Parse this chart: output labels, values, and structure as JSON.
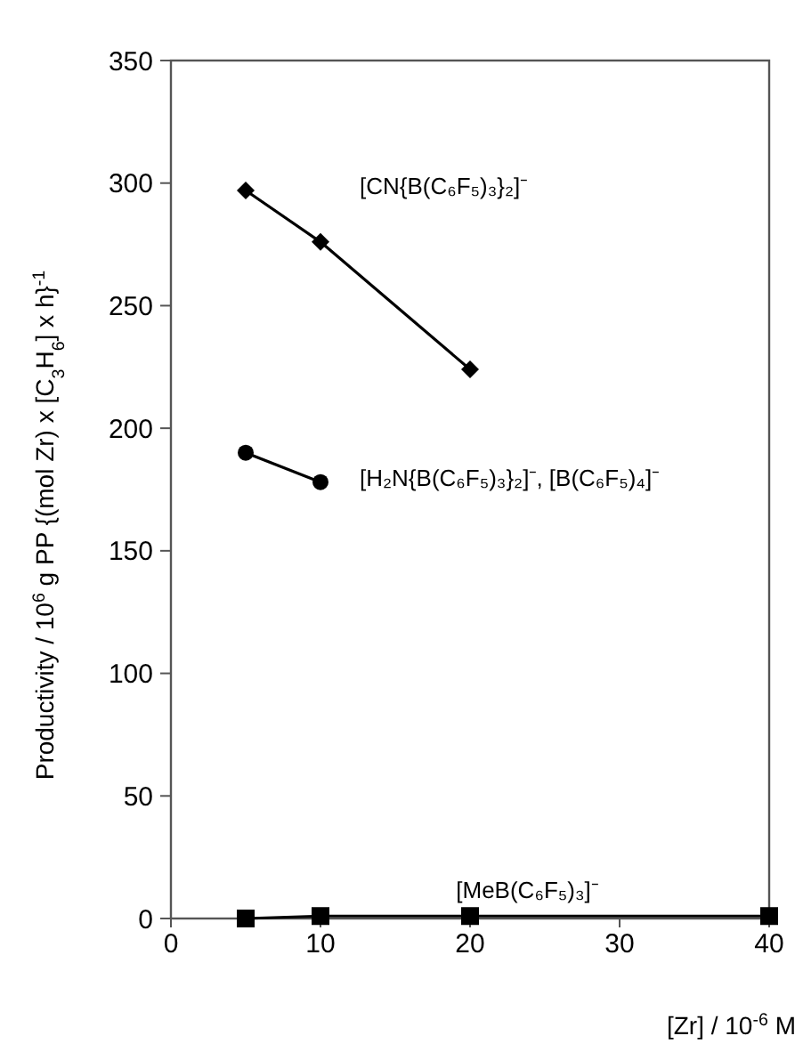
{
  "chart_data": {
    "type": "line",
    "xlabel": "[Zr] / 10$^{-6}$ M",
    "ylabel": "Productivity / 10$^{6}$ g PP {(mol Zr) x [C$_{3}$H$_{6}$] x h}$^{-1}$",
    "xlim": [
      0,
      40
    ],
    "xticks": [
      0,
      10,
      20,
      30,
      40
    ],
    "ylim": [
      0,
      350
    ],
    "yticks": [
      0,
      50,
      100,
      150,
      200,
      250,
      300,
      350
    ],
    "grid": false,
    "series": [
      {
        "name": "[CN{B(C₆F₅)₃}₂]⁻",
        "color": "#000000",
        "marker": "diamond",
        "x": [
          5,
          10,
          20
        ],
        "values": [
          297,
          276,
          224
        ]
      },
      {
        "name": "[H₂N{B(C₆F₅)₃}₂]⁻, [B(C₆F₅)₄]⁻",
        "color": "#000000",
        "marker": "circle",
        "x": [
          5,
          10
        ],
        "values": [
          190,
          178
        ]
      },
      {
        "name": "[MeB(C₆F₅)₃]⁻",
        "color": "#000000",
        "marker": "square",
        "x": [
          5,
          10,
          20,
          40
        ],
        "values": [
          0,
          1,
          1,
          1
        ]
      }
    ]
  }
}
